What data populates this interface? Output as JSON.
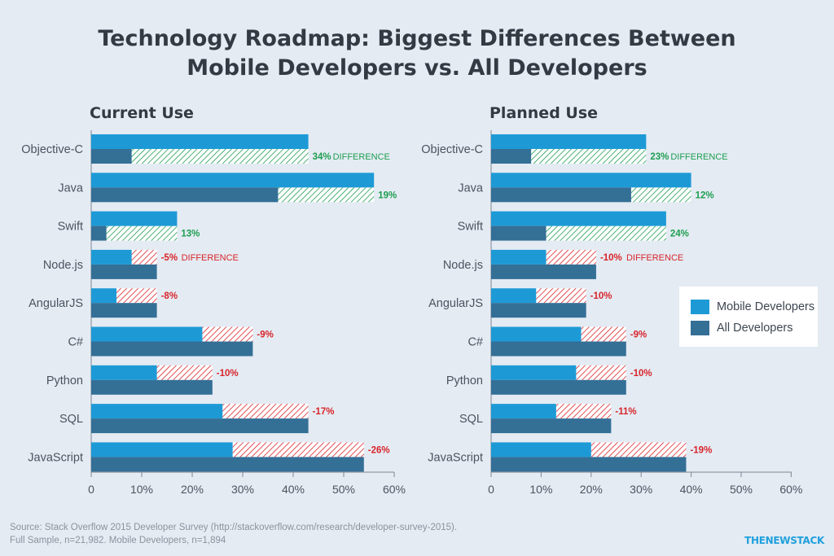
{
  "title_lines": [
    "Technology Roadmap: Biggest Differences Between",
    "Mobile Developers vs. All Developers"
  ],
  "source_lines": [
    "Source: Stack Overflow 2015 Developer Survey (http://stackoverflow.com/research/developer-survey-2015).",
    "Full Sample, n=21,982. Mobile Developers, n=1,894"
  ],
  "brand": "THENEWSTACK",
  "colors": {
    "mobile": "#1d9ad6",
    "all": "#346f96",
    "positive": "#1e9e50",
    "negative": "#d9242a"
  },
  "legend": {
    "mobile_label": "Mobile Developers",
    "all_label": "All Developers"
  },
  "chart_data": [
    {
      "type": "bar",
      "title": "Current Use",
      "categories": [
        "Objective-C",
        "Java",
        "Swift",
        "Node.js",
        "AngularJS",
        "C#",
        "Python",
        "SQL",
        "JavaScript"
      ],
      "series": [
        {
          "name": "Mobile Developers",
          "values": [
            43,
            56,
            17,
            8,
            5,
            22,
            13,
            26,
            28
          ]
        },
        {
          "name": "All Developers",
          "values": [
            8,
            37,
            3,
            13,
            13,
            32,
            24,
            43,
            54
          ]
        }
      ],
      "difference_labels": [
        "34%",
        "19%",
        "13%",
        "-5%",
        "-8%",
        "-9%",
        "-10%",
        "-17%",
        "-26%"
      ],
      "difference_word": "DIFFERENCE",
      "difference_word_rows": [
        0,
        3
      ],
      "x_ticks": [
        "0",
        "10%",
        "20%",
        "30%",
        "40%",
        "50%",
        "60%"
      ],
      "xlim": [
        0,
        60
      ],
      "orientation": "horizontal"
    },
    {
      "type": "bar",
      "title": "Planned Use",
      "categories": [
        "Objective-C",
        "Java",
        "Swift",
        "Node.js",
        "AngularJS",
        "C#",
        "Python",
        "SQL",
        "JavaScript"
      ],
      "series": [
        {
          "name": "Mobile Developers",
          "values": [
            31,
            40,
            35,
            11,
            9,
            18,
            17,
            13,
            20
          ]
        },
        {
          "name": "All Developers",
          "values": [
            8,
            28,
            11,
            21,
            19,
            27,
            27,
            24,
            39
          ]
        }
      ],
      "difference_labels": [
        "23%",
        "12%",
        "24%",
        "-10%",
        "-10%",
        "-9%",
        "-10%",
        "-11%",
        "-19%"
      ],
      "difference_word": "DIFFERENCE",
      "difference_word_rows": [
        0,
        3
      ],
      "x_ticks": [
        "0",
        "10%",
        "20%",
        "30%",
        "40%",
        "50%",
        "60%"
      ],
      "xlim": [
        0,
        60
      ],
      "orientation": "horizontal"
    }
  ]
}
